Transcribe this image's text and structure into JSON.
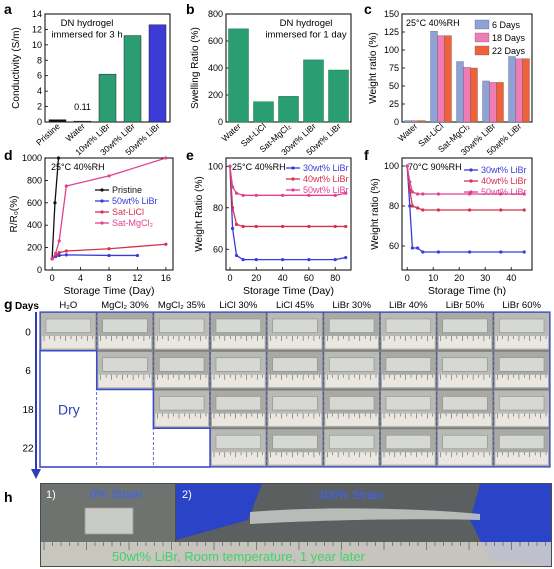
{
  "panel_letters": [
    "a",
    "b",
    "c",
    "d",
    "e",
    "f",
    "g",
    "h"
  ],
  "colors": {
    "green": "#2a9d72",
    "green_dark": "#1e7a56",
    "blue": "#3b3bd8",
    "pink": "#e0418f",
    "crimson": "#d6304e",
    "black": "#111111",
    "bar_blue": "#8fa2d8",
    "bar_pink": "#f07cb6",
    "bar_orange": "#f0613a"
  },
  "chart_data": [
    {
      "id": "a",
      "type": "bar",
      "title": "DN hydrogel\nimmersed for 3 h",
      "ylabel": "Conductivity (S/m)",
      "categories": [
        "Pristine",
        "Water",
        "10wt% LiBr",
        "30wt% LiBr",
        "50wt% LiBr"
      ],
      "values": [
        0.3,
        0.11,
        6.2,
        11.2,
        12.6
      ],
      "value_label": "0.11",
      "colors": [
        "#111111",
        "#2b2b2b",
        "#2a9d72",
        "#2a9d72",
        "#3b3bd8"
      ],
      "ylim": [
        0,
        14
      ],
      "yticks": [
        0,
        2,
        4,
        6,
        8,
        10,
        12,
        14
      ]
    },
    {
      "id": "b",
      "type": "bar",
      "title": "DN hydrogel\nimmersed for 1 day",
      "ylabel": "Swelling Ratio (%)",
      "categories": [
        "Water",
        "Sat-LiCl",
        "Sat-MgCl₂",
        "30wt% LiBr",
        "50wt% LiBr"
      ],
      "values": [
        690,
        150,
        190,
        460,
        385
      ],
      "ylim": [
        0,
        800
      ],
      "yticks": [
        0,
        200,
        400,
        600,
        800
      ]
    },
    {
      "id": "c",
      "type": "bar",
      "annotation": "25°C 40%RH",
      "ylabel": "Weight ratio (%)",
      "categories": [
        "Water",
        "Sat-LiCl",
        "Sat-MgCl₂",
        "30wt% LiBr",
        "50wt% LiBr"
      ],
      "series": [
        {
          "name": "6 Days",
          "color": "#8fa2d8",
          "values": [
            2,
            126,
            84,
            57,
            91
          ]
        },
        {
          "name": "18 Days",
          "color": "#f07cb6",
          "values": [
            2,
            120,
            76,
            55,
            88
          ]
        },
        {
          "name": "22 Days",
          "color": "#f0613a",
          "values": [
            2,
            120,
            75,
            55,
            88
          ]
        }
      ],
      "ylim": [
        0,
        150
      ],
      "yticks": [
        0,
        25,
        50,
        75,
        100,
        125,
        150
      ],
      "legend": "top-right"
    },
    {
      "id": "d",
      "type": "line",
      "annotation": "25°C 40%RH",
      "xlabel": "Storage Time (Day)",
      "ylabel": "R/R₀(%)",
      "xlim": [
        -1,
        17
      ],
      "ylim": [
        0,
        1000
      ],
      "xticks": [
        0,
        4,
        8,
        12,
        16
      ],
      "yticks": [
        0,
        200,
        400,
        600,
        800,
        1000
      ],
      "series": [
        {
          "name": "Pristine",
          "color": "#111111",
          "x": [
            0,
            0.4,
            0.9
          ],
          "y": [
            100,
            600,
            1000
          ]
        },
        {
          "name": "50wt% LiBr",
          "color": "#3b3bd8",
          "x": [
            0,
            0.5,
            1,
            2,
            8,
            12
          ],
          "y": [
            100,
            120,
            130,
            135,
            130,
            130
          ]
        },
        {
          "name": "Sat-LiCl",
          "color": "#d6304e",
          "x": [
            0,
            1,
            2,
            8,
            16
          ],
          "y": [
            100,
            155,
            170,
            190,
            230
          ]
        },
        {
          "name": "Sat-MgCl₂",
          "color": "#e0418f",
          "x": [
            0,
            0.5,
            1,
            2,
            8,
            16
          ],
          "y": [
            100,
            150,
            260,
            750,
            840,
            1000
          ]
        }
      ],
      "legend": "center-right"
    },
    {
      "id": "e",
      "type": "line",
      "annotation": "25°C 40%RH",
      "xlabel": "Storage Time (Day)",
      "ylabel": "Weight Ratio (%)",
      "xlim": [
        -3,
        92
      ],
      "ylim": [
        50,
        104
      ],
      "xticks": [
        0,
        20,
        40,
        60,
        80
      ],
      "yticks": [
        60,
        80,
        100
      ],
      "series": [
        {
          "name": "30wt% LiBr",
          "color": "#3b3bd8",
          "x": [
            0,
            2,
            5,
            10,
            20,
            40,
            60,
            80,
            88
          ],
          "y": [
            100,
            70,
            57,
            55,
            55,
            55,
            55,
            55,
            56
          ]
        },
        {
          "name": "40wt% LiBr",
          "color": "#d6304e",
          "x": [
            0,
            2,
            5,
            10,
            20,
            40,
            60,
            80,
            88
          ],
          "y": [
            100,
            80,
            72,
            71,
            71,
            71,
            71,
            71,
            71
          ]
        },
        {
          "name": "50wt% LiBr",
          "color": "#e0418f",
          "x": [
            0,
            2,
            5,
            10,
            20,
            40,
            60,
            80,
            88
          ],
          "y": [
            100,
            90,
            87,
            86,
            86,
            86,
            86,
            86,
            87
          ]
        }
      ],
      "legend": "top-right"
    },
    {
      "id": "f",
      "type": "line",
      "annotation": "70°C 90%RH",
      "xlabel": "Storage Time (h)",
      "ylabel": "Weight ratio (%)",
      "xlim": [
        -2,
        48
      ],
      "ylim": [
        48,
        104
      ],
      "xticks": [
        0,
        10,
        20,
        30,
        40
      ],
      "yticks": [
        60,
        80,
        100
      ],
      "series": [
        {
          "name": "30wt% LiBr",
          "color": "#3b3bd8",
          "x": [
            0,
            1,
            2,
            4,
            6,
            12,
            24,
            36,
            45
          ],
          "y": [
            100,
            80,
            59,
            59,
            57,
            57,
            57,
            57,
            57
          ]
        },
        {
          "name": "40wt% LiBr",
          "color": "#d6304e",
          "x": [
            0,
            1,
            2,
            4,
            6,
            12,
            24,
            36,
            45
          ],
          "y": [
            100,
            88,
            80,
            79,
            78,
            78,
            78,
            78,
            78
          ]
        },
        {
          "name": "50wt% LiBr",
          "color": "#e0418f",
          "x": [
            0,
            1,
            2,
            4,
            6,
            12,
            24,
            36,
            45
          ],
          "y": [
            100,
            92,
            87,
            86,
            86,
            86,
            86,
            86,
            86
          ]
        }
      ],
      "legend": "top-right"
    }
  ],
  "panel_g": {
    "row_header": "Days",
    "columns": [
      "H₂O",
      "MgCl₂ 30%",
      "MgCl₂ 35%",
      "LiCl 30%",
      "LiCl 45%",
      "LiBr 30%",
      "LiBr 40%",
      "LiBr 50%",
      "LiBr 60%"
    ],
    "rows": [
      "0",
      "6",
      "18",
      "22"
    ],
    "dry_label": "Dry"
  },
  "panel_h": {
    "sub1": "1)",
    "sub1_label": "0% Strain",
    "sub2": "2)",
    "sub2_label": "400% Strain",
    "caption": "50wt% LiBr, Room temperature, 1 year later"
  }
}
